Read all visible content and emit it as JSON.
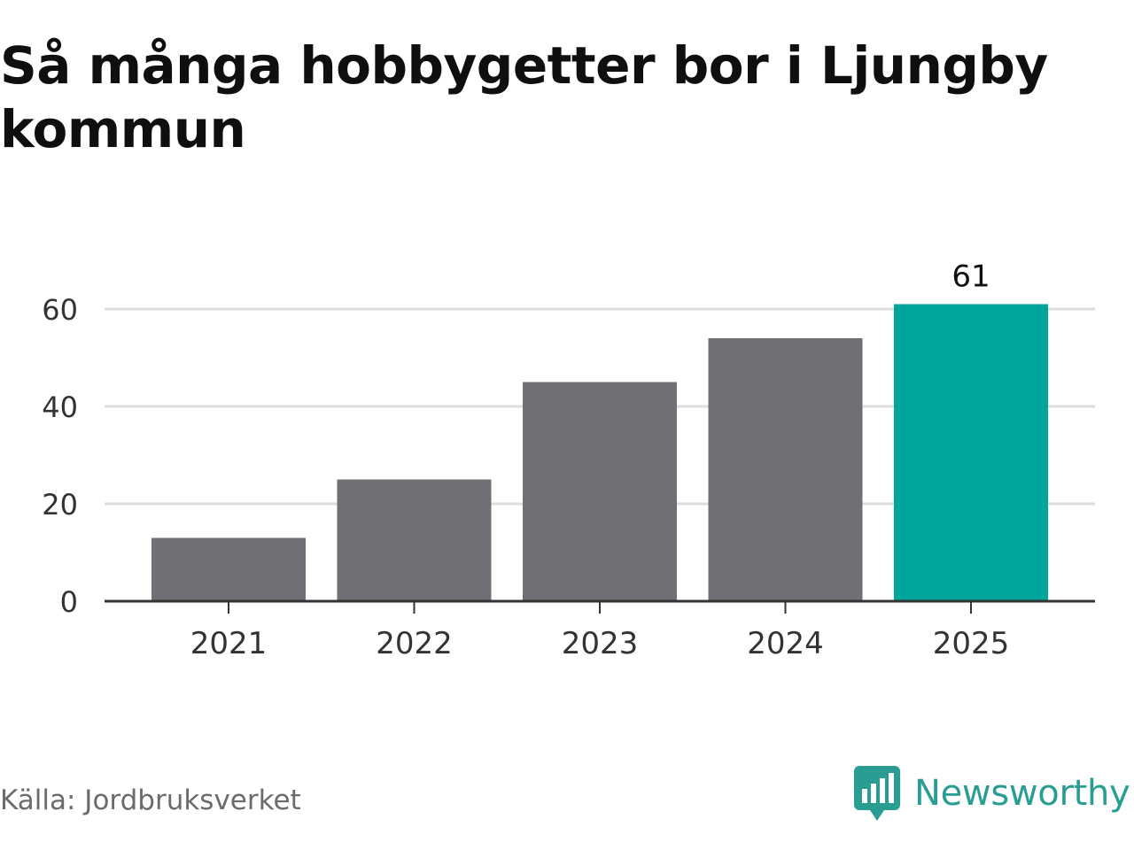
{
  "title": "Så många hobbygetter bor i Ljungby kommun",
  "source": "Källa: Jordbruksverket",
  "brand": {
    "name": "Newsworthy",
    "logo_icon": "bar-chart-speech-bubble-icon"
  },
  "colors": {
    "bar_default": "#706f75",
    "bar_highlight": "#00a59b",
    "brand": "#2a9d93",
    "grid": "#dddddd",
    "axis": "#333333"
  },
  "chart_data": {
    "type": "bar",
    "categories": [
      "2021",
      "2022",
      "2023",
      "2024",
      "2025"
    ],
    "values": [
      13,
      25,
      45,
      54,
      61
    ],
    "highlight_index": 4,
    "data_labels": {
      "4": "61"
    },
    "yticks": [
      "0",
      "20",
      "40",
      "60"
    ],
    "ylim": [
      0,
      60
    ],
    "grid": true,
    "legend": "none",
    "title": "Så många hobbygetter bor i Ljungby kommun",
    "xlabel": "",
    "ylabel": ""
  }
}
